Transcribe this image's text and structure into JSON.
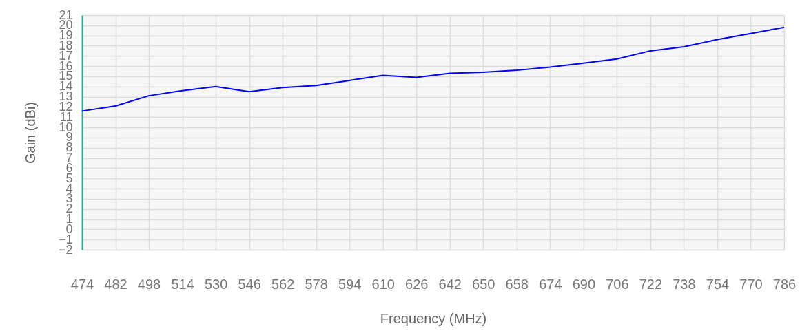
{
  "chart_data": {
    "type": "line",
    "xlabel": "Frequency (MHz)",
    "ylabel": "Gain (dBi)",
    "categories": [
      "474",
      "482",
      "498",
      "514",
      "530",
      "546",
      "562",
      "578",
      "594",
      "610",
      "626",
      "642",
      "650",
      "658",
      "674",
      "690",
      "706",
      "722",
      "738",
      "754",
      "770",
      "786"
    ],
    "series": [
      {
        "color": "#0000ff",
        "values": [
          11.6,
          12.1,
          13.1,
          13.6,
          14.0,
          13.5,
          13.9,
          14.1,
          14.6,
          15.1,
          14.9,
          15.3,
          15.4,
          15.6,
          15.9,
          16.3,
          16.7,
          17.5,
          17.9,
          18.6,
          19.2,
          19.8
        ]
      }
    ],
    "ylim": [
      -2,
      21
    ],
    "yticks": [
      -2,
      -1,
      0,
      1,
      2,
      3,
      4,
      5,
      6,
      7,
      8,
      9,
      10,
      11,
      12,
      13,
      14,
      15,
      16,
      17,
      18,
      19,
      20,
      21
    ],
    "grid": true,
    "marker": "none",
    "line_style": "solid"
  }
}
